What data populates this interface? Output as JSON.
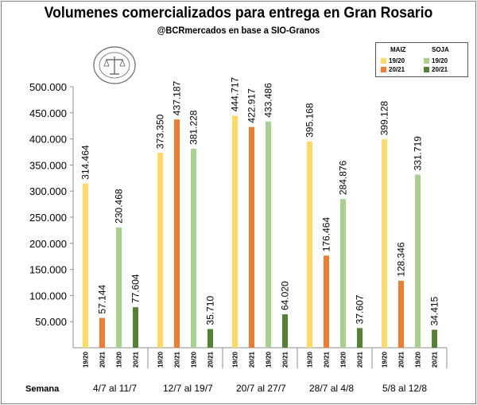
{
  "title": "Volumenes comercializados para entrega en Gran Rosario",
  "subtitle": "@BCRmercados en base a SIO-Granos",
  "logo": {
    "text": "BOLSA DE COMERCIO DE ROSARIO"
  },
  "legend": {
    "groups": [
      {
        "label": "MAIZ",
        "items": [
          {
            "label": "19/20",
            "color": "#ffd966"
          },
          {
            "label": "20/21",
            "color": "#ed7d31"
          }
        ]
      },
      {
        "label": "SOJA",
        "items": [
          {
            "label": "19/20",
            "color": "#a9d18e"
          },
          {
            "label": "20/21",
            "color": "#548235"
          }
        ]
      }
    ]
  },
  "week_label": "Semana",
  "chart_data": {
    "type": "bar",
    "categories": [
      "4/7  al  11/7",
      "12/7  al  19/7",
      "20/7  al  27/7",
      "28/7  al    4/8",
      "5/8  al  12/8"
    ],
    "bar_labels": [
      "19/20",
      "20/21",
      "19/20",
      "20/21"
    ],
    "series": [
      {
        "name": "MAIZ 19/20",
        "color": "#ffd966",
        "values": [
          314464,
          373350,
          444717,
          395168,
          399128
        ],
        "labels": [
          "314.464",
          "373.350",
          "444.717",
          "395.168",
          "399.128"
        ]
      },
      {
        "name": "MAIZ 20/21",
        "color": "#ed7d31",
        "values": [
          57144,
          437187,
          422917,
          176464,
          128346
        ],
        "labels": [
          "57.144",
          "437.187",
          "422.917",
          "176.464",
          "128.346"
        ]
      },
      {
        "name": "SOJA 19/20",
        "color": "#a9d18e",
        "values": [
          230468,
          381228,
          433486,
          284876,
          331719
        ],
        "labels": [
          "230.468",
          "381.228",
          "433.486",
          "284.876",
          "331.719"
        ]
      },
      {
        "name": "SOJA 20/21",
        "color": "#548235",
        "values": [
          77604,
          35710,
          64020,
          37607,
          34415
        ],
        "labels": [
          "77.604",
          "35.710",
          "64.020",
          "37.607",
          "34.415"
        ]
      }
    ],
    "y_ticks": [
      "50.000",
      "100.000",
      "150.000",
      "200.000",
      "250.000",
      "300.000",
      "350.000",
      "400.000",
      "450.000",
      "500.000"
    ],
    "ylim": [
      0,
      500000
    ],
    "grid": false,
    "legend_position": "top-right"
  }
}
